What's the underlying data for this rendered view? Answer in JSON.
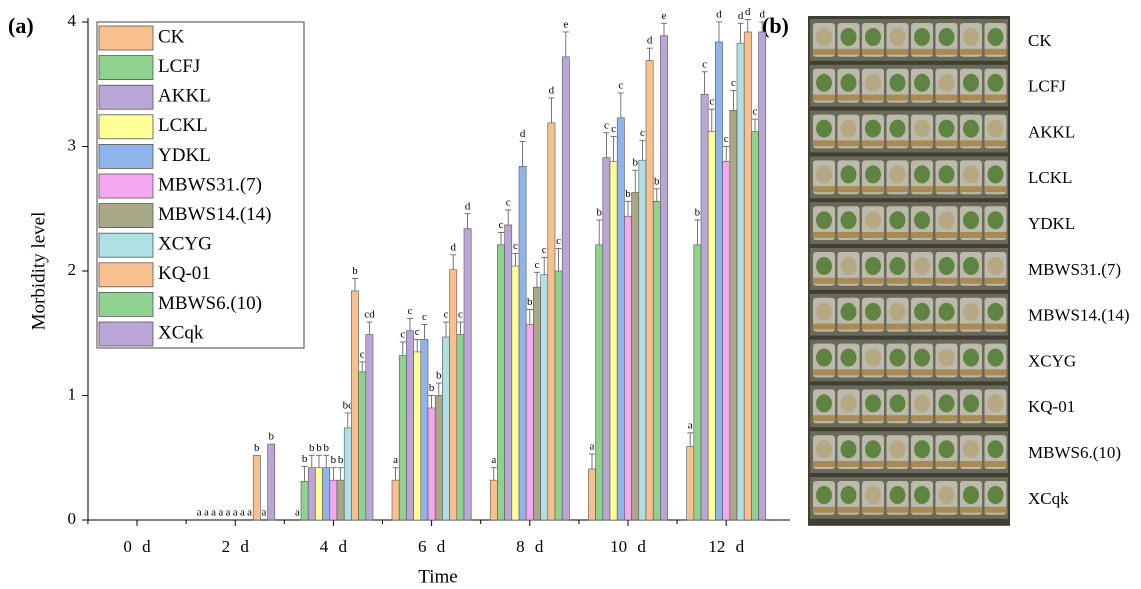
{
  "chart_data": {
    "type": "bar",
    "panel_label": "(a)",
    "xlabel": "Time",
    "ylabel": "Morbidity level",
    "categories": [
      "0 d",
      "2 d",
      "4 d",
      "6 d",
      "8 d",
      "10 d",
      "12 d"
    ],
    "ylim": [
      0,
      4
    ],
    "yticks": [
      0,
      1,
      2,
      3,
      4
    ],
    "legend": "upper left",
    "series": [
      {
        "name": "CK",
        "color": "#f9c08f",
        "values": [
          0,
          0,
          0,
          0.32,
          0.32,
          0.41,
          0.59
        ],
        "errors": [
          0,
          0,
          0,
          0.1,
          0.1,
          0.12,
          0.11
        ],
        "letters": [
          null,
          "a",
          "a",
          "a",
          "a",
          "a",
          "a"
        ]
      },
      {
        "name": "LCFJ",
        "color": "#8fd18f",
        "values": [
          0,
          0,
          0.31,
          1.32,
          2.21,
          2.21,
          2.21
        ],
        "errors": [
          0,
          0,
          0.12,
          0.11,
          0.1,
          0.2,
          0.2
        ],
        "letters": [
          null,
          "a",
          "b",
          "c",
          "c",
          "b",
          "b"
        ]
      },
      {
        "name": "AKKL",
        "color": "#b9a6d6",
        "values": [
          0,
          0,
          0.42,
          1.52,
          2.37,
          2.91,
          3.42
        ],
        "errors": [
          0,
          0,
          0.1,
          0.1,
          0.12,
          0.2,
          0.18
        ],
        "letters": [
          null,
          "a",
          "b",
          "c",
          "c",
          "c",
          "c"
        ]
      },
      {
        "name": "LCKL",
        "color": "#ffff99",
        "values": [
          0,
          0,
          0.42,
          1.35,
          2.04,
          2.88,
          3.12
        ],
        "errors": [
          0,
          0,
          0.1,
          0.1,
          0.1,
          0.2,
          0.18
        ],
        "letters": [
          null,
          "a",
          "b",
          "c",
          "c",
          "c",
          "c"
        ]
      },
      {
        "name": "YDKL",
        "color": "#8fb4ec",
        "values": [
          0,
          0,
          0.42,
          1.45,
          2.84,
          3.23,
          3.84
        ],
        "errors": [
          0,
          0,
          0.1,
          0.12,
          0.2,
          0.2,
          0.16
        ],
        "letters": [
          null,
          "a",
          "b",
          "c",
          "d",
          "c",
          "d"
        ]
      },
      {
        "name": "MBWS31.(7)",
        "color": "#f5a8f0",
        "values": [
          0,
          0,
          0.32,
          0.9,
          1.57,
          2.44,
          2.88
        ],
        "errors": [
          0,
          0,
          0.1,
          0.1,
          0.12,
          0.12,
          0.12
        ],
        "letters": [
          null,
          "a",
          "b",
          "b",
          "b",
          "b",
          "c"
        ]
      },
      {
        "name": "MBWS14.(14)",
        "color": "#a8a886",
        "values": [
          0,
          0,
          0.32,
          1.0,
          1.87,
          2.63,
          3.29
        ],
        "errors": [
          0,
          0,
          0.1,
          0.1,
          0.12,
          0.18,
          0.16
        ],
        "letters": [
          null,
          "a",
          "b",
          "b",
          "c",
          "b",
          "c"
        ]
      },
      {
        "name": "XCYG",
        "color": "#aee0e6",
        "values": [
          0,
          0,
          0.74,
          1.47,
          1.97,
          2.89,
          3.83
        ],
        "errors": [
          0,
          0,
          0.12,
          0.12,
          0.14,
          0.16,
          0.16
        ],
        "letters": [
          null,
          "a",
          "bc",
          "c",
          "c",
          "c",
          "d"
        ]
      },
      {
        "name": "KQ-01",
        "color": "#f9c08f",
        "values": [
          0,
          0.52,
          1.84,
          2.01,
          3.19,
          3.69,
          3.92
        ],
        "errors": [
          0,
          0,
          0.1,
          0.12,
          0.2,
          0.1,
          0.1
        ],
        "letters": [
          null,
          "b",
          "b",
          "d",
          "d",
          "d",
          "d"
        ]
      },
      {
        "name": "MBWS6.(10)",
        "color": "#8fd18f",
        "values": [
          0,
          0,
          1.19,
          1.49,
          2.0,
          2.56,
          3.12
        ],
        "errors": [
          0,
          0,
          0.08,
          0.1,
          0.18,
          0.1,
          0.1
        ],
        "letters": [
          null,
          "a",
          "c",
          "c",
          "c",
          "b",
          "c"
        ]
      },
      {
        "name": "XCqk",
        "color": "#b9a6d6",
        "values": [
          0,
          0.61,
          1.49,
          2.34,
          3.72,
          3.89,
          3.92
        ],
        "errors": [
          0,
          0,
          0.1,
          0.12,
          0.2,
          0.1,
          0.08
        ],
        "letters": [
          null,
          "b",
          "cd",
          "d",
          "e",
          "e",
          "d"
        ]
      }
    ]
  },
  "photo": {
    "panel_label": "(b)",
    "rows": [
      "CK",
      "LCFJ",
      "AKKL",
      "LCKL",
      "YDKL",
      "MBWS31.(7)",
      "MBWS14.(14)",
      "XCYG",
      "KQ-01",
      "MBWS6.(10)",
      "XCqk"
    ]
  }
}
